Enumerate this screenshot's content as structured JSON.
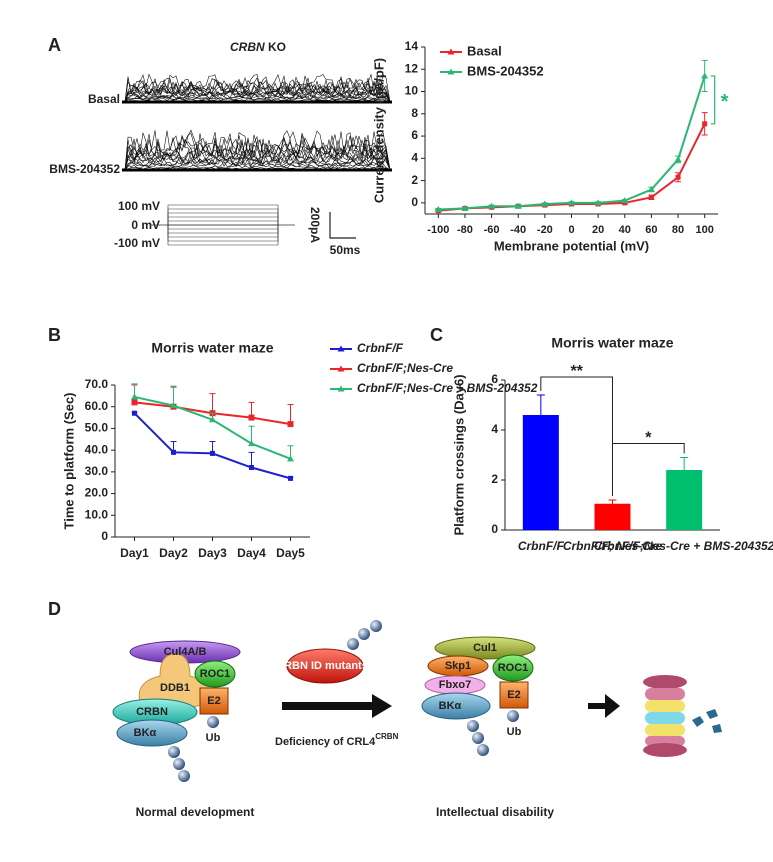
{
  "panel_labels": [
    "A",
    "B",
    "C",
    "D"
  ],
  "traces": {
    "title_gene": "CRBN",
    "title_rest": " KO",
    "rows": [
      "Basal",
      "BMS-204352"
    ],
    "protocol": [
      "100 mV",
      "0 mV",
      "-100 mV"
    ],
    "scale_y": "200pA",
    "scale_x": "50ms"
  },
  "chart_data": [
    {
      "type": "line",
      "x": [
        -100,
        -80,
        -60,
        -40,
        -20,
        0,
        20,
        40,
        60,
        80,
        100
      ],
      "xlim": [
        -110,
        110
      ],
      "xticks": [
        -100,
        -80,
        -60,
        -40,
        -20,
        0,
        20,
        40,
        60,
        80,
        100
      ],
      "ylim": [
        -1,
        14
      ],
      "yticks": [
        0,
        2,
        4,
        6,
        8,
        10,
        12,
        14
      ],
      "xlabel": "Membrane potential (mV)",
      "ylabel": "Current density (pA/pF)",
      "legend": "top-left",
      "series": [
        {
          "name": "Basal",
          "color": "#e8262b",
          "values": [
            -0.7,
            -0.5,
            -0.4,
            -0.3,
            -0.2,
            -0.1,
            -0.1,
            0.0,
            0.5,
            2.3,
            7.1
          ],
          "errors": [
            0.1,
            0.1,
            0.1,
            0.1,
            0.1,
            0.1,
            0.1,
            0.1,
            0.2,
            0.4,
            1.0
          ]
        },
        {
          "name": "BMS-204352",
          "color": "#2bb673",
          "values": [
            -0.6,
            -0.5,
            -0.3,
            -0.3,
            -0.1,
            0.0,
            0.0,
            0.2,
            1.2,
            3.9,
            11.4
          ],
          "errors": [
            0.1,
            0.1,
            0.1,
            0.1,
            0.1,
            0.1,
            0.1,
            0.1,
            0.2,
            0.3,
            1.4
          ]
        }
      ],
      "annotations": [
        "*"
      ]
    },
    {
      "type": "line",
      "title": "Morris water maze",
      "categories": [
        "Day1",
        "Day2",
        "Day3",
        "Day4",
        "Day5"
      ],
      "ylim": [
        0,
        70
      ],
      "yticks": [
        0,
        {
          "value": 10,
          "label": "10.0"
        },
        {
          "value": 20,
          "label": "20.0"
        },
        {
          "value": 30,
          "label": "30.0"
        },
        {
          "value": 40,
          "label": "40.0"
        },
        {
          "value": 50,
          "label": "50.0"
        },
        {
          "value": 60,
          "label": "60.0"
        },
        {
          "value": 70,
          "label": "70.0"
        }
      ],
      "ylabel": "Time to platform (Sec)",
      "legend": "right",
      "series": [
        {
          "name": "CrbnF/F",
          "color": "#1f1fcf",
          "values": [
            57,
            39,
            38.5,
            32,
            27
          ],
          "errors": [
            0.5,
            5,
            5.5,
            7,
            0.5
          ]
        },
        {
          "name": "CrbnF/F;Nes-Cre",
          "color": "#e8262b",
          "values": [
            62,
            60,
            57,
            55,
            52
          ],
          "errors": [
            8,
            9,
            9,
            7,
            9
          ]
        },
        {
          "name": "CrbnF/F;Nes-Cre + BMS-204352",
          "color": "#2bb673",
          "values": [
            64.5,
            60.5,
            54,
            43,
            36
          ],
          "errors": [
            6,
            9,
            3,
            8,
            6
          ]
        }
      ]
    },
    {
      "type": "bar",
      "title": "Morris water maze",
      "categories": [
        "CrbnF/F",
        "CrbnF/F; Nes-Cre",
        "CrbnF/F;Nes-Cre + BMS-204352"
      ],
      "values": [
        4.6,
        1.05,
        2.4
      ],
      "errors": [
        0.8,
        0.15,
        0.5
      ],
      "colors": [
        "#0000ff",
        "#ff0000",
        "#00c070"
      ],
      "ylim": [
        0,
        6
      ],
      "yticks": [
        0,
        2,
        4,
        6
      ],
      "ylabel": "Platform crossings (Day6)",
      "annotations": [
        "**",
        "*"
      ]
    }
  ],
  "diagram": {
    "left": [
      "Cul4A/B",
      "DDB1",
      "ROC1",
      "E2",
      "CRBN",
      "BKα",
      "Ub"
    ],
    "mutant": "CRBN ID mutants",
    "arrow_text": "Deficiency of CRL4",
    "arrow_sup": "CRBN",
    "right": [
      "Cul1",
      "Skp1",
      "ROC1",
      "Fbxo7",
      "E2",
      "BKα",
      "Ub"
    ],
    "captions": [
      "Normal development",
      "Intellectual disability"
    ]
  }
}
